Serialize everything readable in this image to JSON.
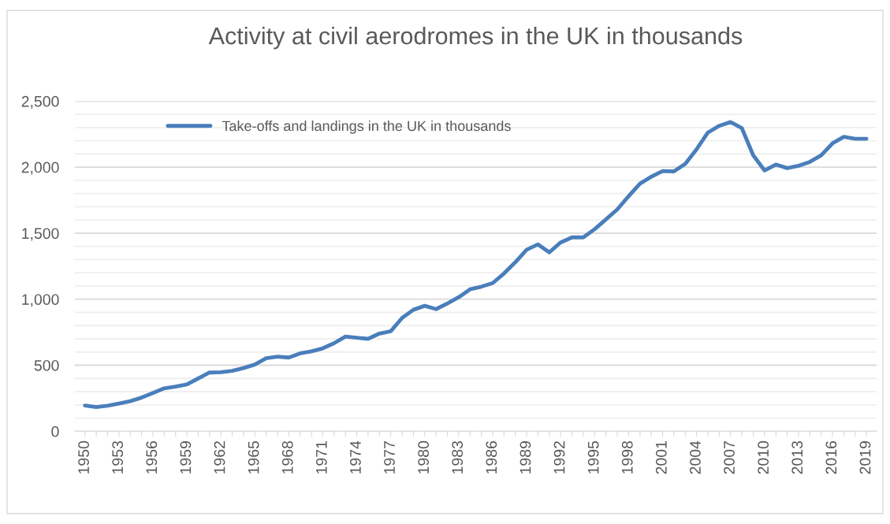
{
  "chart_data": {
    "type": "line",
    "title": "Activity at civil aerodromes in the UK in thousands",
    "categories": [
      "1950",
      null,
      null,
      "1953",
      null,
      null,
      "1956",
      null,
      null,
      "1959",
      null,
      null,
      "1962",
      null,
      null,
      "1965",
      null,
      null,
      "1968",
      null,
      null,
      "1971",
      null,
      null,
      "1974",
      null,
      null,
      "1977",
      null,
      null,
      "1980",
      null,
      null,
      "1983",
      null,
      null,
      "1986",
      null,
      null,
      "1989",
      null,
      null,
      "1992",
      null,
      null,
      "1995",
      null,
      null,
      "1998",
      null,
      null,
      "2001",
      null,
      null,
      "2004",
      null,
      null,
      "2007",
      null,
      null,
      "2010",
      null,
      null,
      "2013",
      null,
      null,
      "2016",
      null,
      null,
      "2019"
    ],
    "series": [
      {
        "name": "Take-offs and landings in the UK in thousands",
        "color": "#4a7ebb",
        "values": [
          195,
          183,
          193,
          210,
          228,
          255,
          290,
          325,
          338,
          355,
          400,
          445,
          447,
          458,
          478,
          505,
          553,
          565,
          558,
          590,
          605,
          628,
          667,
          717,
          708,
          700,
          740,
          757,
          858,
          920,
          950,
          925,
          968,
          1015,
          1075,
          1095,
          1122,
          1195,
          1280,
          1375,
          1415,
          1355,
          1430,
          1468,
          1468,
          1530,
          1605,
          1680,
          1780,
          1875,
          1928,
          1970,
          1968,
          2025,
          2135,
          2262,
          2313,
          2342,
          2295,
          2090,
          1975,
          2020,
          1993,
          2010,
          2040,
          2090,
          2180,
          2230,
          2215,
          2215
        ]
      }
    ],
    "ylim": [
      0,
      2500
    ],
    "yticks": [
      {
        "value": 0,
        "label": "0"
      },
      {
        "value": 100,
        "label": null
      },
      {
        "value": 200,
        "label": null
      },
      {
        "value": 300,
        "label": null
      },
      {
        "value": 400,
        "label": null
      },
      {
        "value": 500,
        "label": "500"
      },
      {
        "value": 600,
        "label": null
      },
      {
        "value": 700,
        "label": null
      },
      {
        "value": 800,
        "label": null
      },
      {
        "value": 900,
        "label": null
      },
      {
        "value": 1000,
        "label": "1,000"
      },
      {
        "value": 1100,
        "label": null
      },
      {
        "value": 1200,
        "label": null
      },
      {
        "value": 1300,
        "label": null
      },
      {
        "value": 1400,
        "label": null
      },
      {
        "value": 1500,
        "label": "1,500"
      },
      {
        "value": 1600,
        "label": null
      },
      {
        "value": 1700,
        "label": null
      },
      {
        "value": 1800,
        "label": null
      },
      {
        "value": 1900,
        "label": null
      },
      {
        "value": 2000,
        "label": "2,000"
      },
      {
        "value": 2100,
        "label": null
      },
      {
        "value": 2200,
        "label": null
      },
      {
        "value": 2300,
        "label": null
      },
      {
        "value": 2400,
        "label": null
      },
      {
        "value": 2500,
        "label": "2,500"
      }
    ],
    "grid": "y",
    "legend": "top left",
    "marker": "none",
    "line_style": "solid"
  }
}
